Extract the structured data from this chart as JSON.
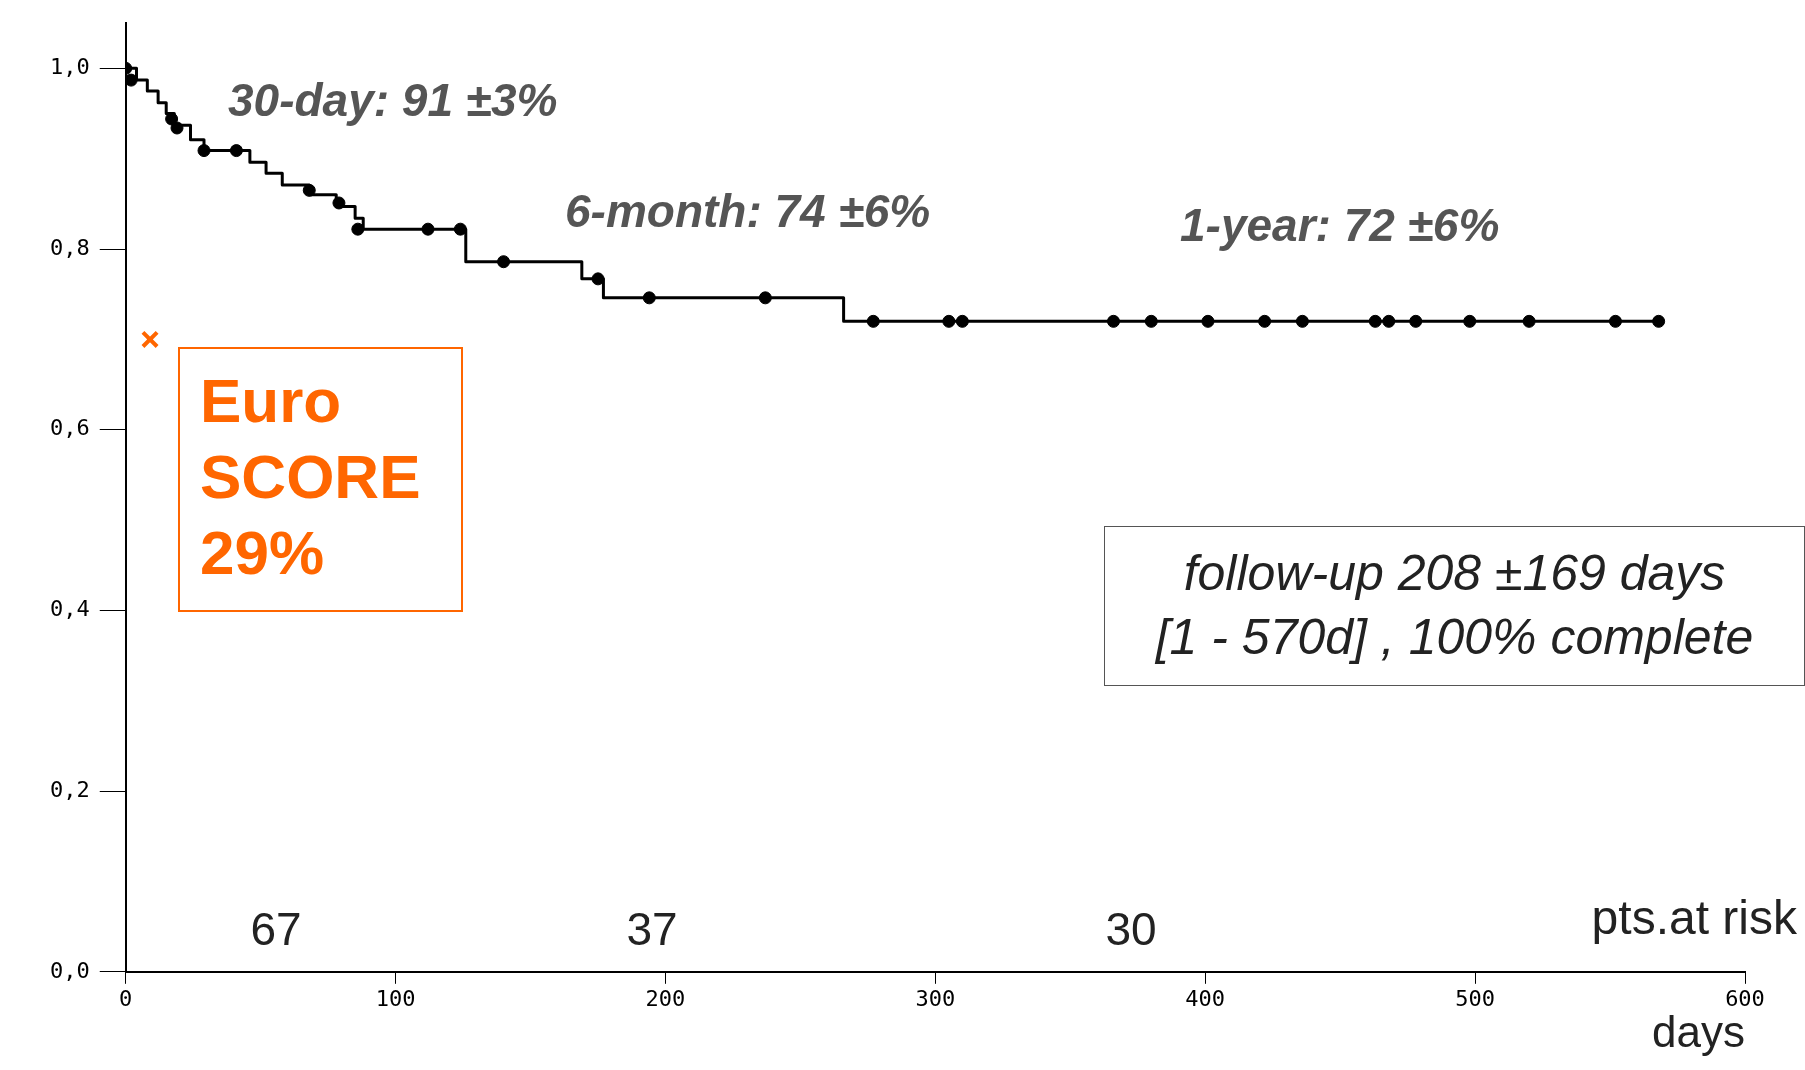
{
  "chart_data": {
    "type": "step",
    "xlabel": "days",
    "xlim": [
      0,
      600
    ],
    "xticks": [
      0,
      100,
      200,
      300,
      400,
      500,
      600
    ],
    "ylim": [
      0,
      1.05
    ],
    "yticks": [
      {
        "value": 0,
        "label": "0,0"
      },
      {
        "value": 0.2,
        "label": "0,2"
      },
      {
        "value": 0.4,
        "label": "0,4"
      },
      {
        "value": 0.6,
        "label": "0,6"
      },
      {
        "value": 0.8,
        "label": "0,8"
      },
      {
        "value": 1,
        "label": "1,0"
      }
    ],
    "grid": false,
    "legend": false,
    "line_style": "solid",
    "series": [
      {
        "type": "step",
        "color": "#000000",
        "marker": "none",
        "x": [
          0,
          4,
          8,
          12,
          15,
          18,
          24,
          29,
          46,
          52,
          58,
          68,
          78,
          85,
          88,
          126,
          169,
          177,
          266,
          570
        ],
        "values": [
          1.0,
          0.987,
          0.975,
          0.962,
          0.95,
          0.937,
          0.921,
          0.909,
          0.896,
          0.884,
          0.871,
          0.86,
          0.847,
          0.834,
          0.822,
          0.786,
          0.767,
          0.746,
          0.72,
          0.72
        ]
      },
      {
        "type": "scatter",
        "color": "#000000",
        "marker": "circle",
        "x": [
          0,
          2,
          17,
          19,
          29,
          41,
          68,
          79,
          86,
          112,
          124,
          140,
          175,
          194,
          237,
          277,
          305,
          310,
          366,
          380,
          401,
          422,
          436,
          463,
          468,
          478,
          498,
          520,
          552,
          568
        ],
        "values": [
          1.0,
          0.987,
          0.944,
          0.934,
          0.909,
          0.909,
          0.865,
          0.851,
          0.822,
          0.822,
          0.822,
          0.786,
          0.767,
          0.746,
          0.746,
          0.72,
          0.72,
          0.72,
          0.72,
          0.72,
          0.72,
          0.72,
          0.72,
          0.72,
          0.72,
          0.72,
          0.72,
          0.72,
          0.72,
          0.72
        ]
      },
      {
        "type": "scatter",
        "color": "#ff6600",
        "marker": "cross",
        "x": [
          9
        ],
        "values": [
          0.7
        ]
      }
    ],
    "annotations": [
      "30-day: 91 ±3%",
      "6-month: 74 ±6%",
      "1-year: 72 ±6%",
      "67",
      "37",
      "30",
      "Euro SCORE 29%",
      "follow-up 208 ±169 days",
      "[1 - 570d] , 100% complete",
      "pts.at risk"
    ]
  }
}
